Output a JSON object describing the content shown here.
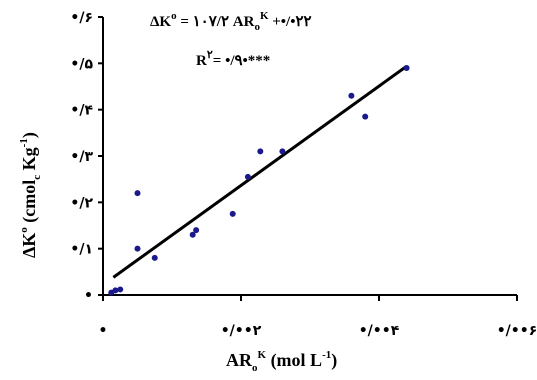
{
  "chart_data": {
    "type": "scatter",
    "xlabel": {
      "main": "AR",
      "sub": "o",
      "sup": "K",
      "unit": " (mol L",
      "unit_sup": "-1",
      "unit_end": ")"
    },
    "ylabel": {
      "main": "ΔK",
      "sup": "o",
      "unit": " (cmol",
      "unit_sub": "c",
      "unit_mid": " Kg",
      "unit_sup": "-1",
      "unit_end": ")"
    },
    "xlim": [
      0,
      0.006
    ],
    "ylim": [
      0,
      0.6
    ],
    "x_ticks": [
      0,
      0.002,
      0.004,
      0.006
    ],
    "x_tick_labels": [
      "•",
      "•/••۲",
      "•/••۴",
      "•/••۶"
    ],
    "y_ticks": [
      0,
      0.1,
      0.2,
      0.3,
      0.4,
      0.5,
      0.6
    ],
    "y_tick_labels": [
      "•",
      "•/۱",
      "•/۲",
      "•/۳",
      "•/۴",
      "•/۵",
      "•/۶"
    ],
    "points": [
      [
        0.00012,
        0.005
      ],
      [
        0.00018,
        0.01
      ],
      [
        0.00025,
        0.012
      ],
      [
        0.0005,
        0.22
      ],
      [
        0.0005,
        0.1
      ],
      [
        0.00075,
        0.08
      ],
      [
        0.0013,
        0.13
      ],
      [
        0.00135,
        0.14
      ],
      [
        0.00188,
        0.175
      ],
      [
        0.0021,
        0.255
      ],
      [
        0.00228,
        0.31
      ],
      [
        0.0026,
        0.31
      ],
      [
        0.0036,
        0.43
      ],
      [
        0.0038,
        0.385
      ],
      [
        0.0044,
        0.49
      ]
    ],
    "regression": {
      "x_start": 0.00015,
      "x_end": 0.0044,
      "intercept": 0.022,
      "slope": 107.2
    },
    "equation": {
      "lhs": "ΔK",
      "lhs_sup": "o",
      "mid": " = ۱۰۷/۲ AR",
      "mid_sub": "o",
      "mid_sup": "K",
      "end": " +•/•۲۲"
    },
    "r2": {
      "main": "R",
      "sup": "۲",
      "end": "= •/۹•***"
    },
    "point_color": "#1a1a8c",
    "line_color": "#000000"
  }
}
